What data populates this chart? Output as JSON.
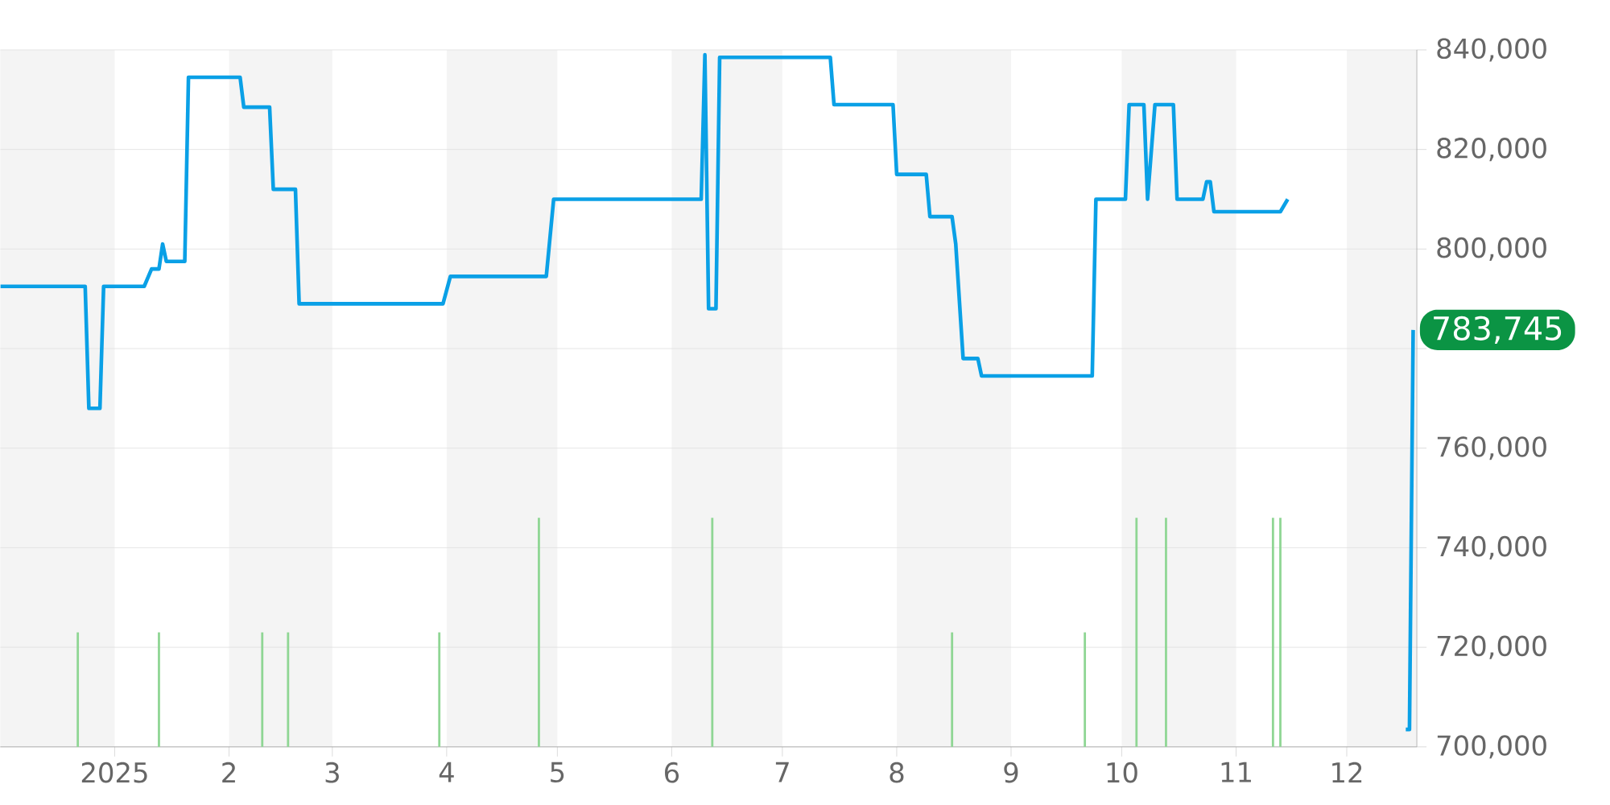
{
  "chart_data": {
    "type": "line",
    "xlim": [
      "2024-12-01",
      "2025-12-20"
    ],
    "ylim": [
      700000,
      840000
    ],
    "xticks": [
      {
        "value": "2025-01-01",
        "label": "2025"
      },
      {
        "value": "2025-02-01",
        "label": "2"
      },
      {
        "value": "2025-03-01",
        "label": "3"
      },
      {
        "value": "2025-04-01",
        "label": "4"
      },
      {
        "value": "2025-05-01",
        "label": "5"
      },
      {
        "value": "2025-06-01",
        "label": "6"
      },
      {
        "value": "2025-07-01",
        "label": "7"
      },
      {
        "value": "2025-08-01",
        "label": "8"
      },
      {
        "value": "2025-09-01",
        "label": "9"
      },
      {
        "value": "2025-10-01",
        "label": "10"
      },
      {
        "value": "2025-11-01",
        "label": "11"
      },
      {
        "value": "2025-12-01",
        "label": "12"
      }
    ],
    "yticks": [
      {
        "value": 700000,
        "label": "700,000"
      },
      {
        "value": 720000,
        "label": "720,000"
      },
      {
        "value": 740000,
        "label": "740,000"
      },
      {
        "value": 760000,
        "label": "760,000"
      },
      {
        "value": 780000,
        "label": null
      },
      {
        "value": 800000,
        "label": "800,000"
      },
      {
        "value": 820000,
        "label": "820,000"
      },
      {
        "value": 840000,
        "label": "840,000"
      }
    ],
    "grid": "y",
    "bands": [
      {
        "axis": "x",
        "from": "2024-12-01",
        "to": "2025-01-01",
        "color": "#f4f4f4"
      },
      {
        "axis": "x",
        "from": "2025-02-01",
        "to": "2025-03-01",
        "color": "#f4f4f4"
      },
      {
        "axis": "x",
        "from": "2025-04-01",
        "to": "2025-05-01",
        "color": "#f4f4f4"
      },
      {
        "axis": "x",
        "from": "2025-06-01",
        "to": "2025-07-01",
        "color": "#f4f4f4"
      },
      {
        "axis": "x",
        "from": "2025-08-01",
        "to": "2025-09-01",
        "color": "#f4f4f4"
      },
      {
        "axis": "x",
        "from": "2025-10-01",
        "to": "2025-11-01",
        "color": "#f4f4f4"
      },
      {
        "axis": "x",
        "from": "2025-12-01",
        "to": "2025-12-20",
        "color": "#f4f4f4"
      }
    ],
    "annotations": [
      {
        "text": "783,745",
        "x": "2025-12-19",
        "y": 783745
      }
    ],
    "series": [
      {
        "color": "#0aa0e6",
        "x": [
          "2024-12-01",
          "2024-12-24",
          "2024-12-25",
          "2024-12-28",
          "2024-12-29",
          "2025-01-09",
          "2025-01-11",
          "2025-01-13",
          "2025-01-14",
          "2025-01-15",
          "2025-01-20",
          "2025-01-21",
          "2025-02-04",
          "2025-02-05",
          "2025-02-12",
          "2025-02-13",
          "2025-02-19",
          "2025-02-20",
          "2025-03-31",
          "2025-04-02",
          "2025-04-28",
          "2025-04-30",
          "2025-06-09",
          "2025-06-10",
          "2025-06-11",
          "2025-06-13",
          "2025-06-14",
          "2025-07-14",
          "2025-07-15",
          "2025-07-31",
          "2025-08-01",
          "2025-08-09",
          "2025-08-10",
          "2025-08-16",
          "2025-08-17",
          "2025-08-19",
          "2025-08-23",
          "2025-08-24",
          "2025-09-23",
          "2025-09-24",
          "2025-10-02",
          "2025-10-03",
          "2025-10-07",
          "2025-10-08",
          "2025-10-10",
          "2025-10-15",
          "2025-10-16",
          "2025-10-23",
          "2025-10-24",
          "2025-10-25",
          "2025-10-26",
          "2025-11-13",
          "2025-11-15",
          "2025-11-30",
          "2025-12-17",
          "2025-12-18",
          "2025-12-19"
        ],
        "values": [
          792500,
          792500,
          768000,
          768000,
          792500,
          792500,
          796000,
          796000,
          801000,
          797500,
          797500,
          834500,
          834500,
          828500,
          828500,
          812000,
          812000,
          789000,
          789000,
          794500,
          794500,
          810000,
          810000,
          839000,
          788000,
          788000,
          838500,
          838500,
          829000,
          829000,
          815000,
          815000,
          806500,
          806500,
          801000,
          778000,
          778000,
          774500,
          774500,
          810000,
          810000,
          829000,
          829000,
          810000,
          829000,
          829000,
          810000,
          810000,
          813500,
          813500,
          807500,
          807500,
          810000,
          null,
          703500,
          703500,
          783745
        ]
      },
      {
        "type": "bar",
        "color": "#8fd694",
        "x": [
          "2024-12-22",
          "2025-01-13",
          "2025-02-10",
          "2025-02-17",
          "2025-03-30",
          "2025-04-26",
          "2025-06-12",
          "2025-08-16",
          "2025-09-21",
          "2025-10-05",
          "2025-10-13",
          "2025-11-11",
          "2025-11-13"
        ],
        "values": [
          723000,
          723000,
          723000,
          723000,
          723000,
          746000,
          746000,
          723000,
          723000,
          746000,
          746000,
          746000,
          746000
        ]
      }
    ]
  }
}
